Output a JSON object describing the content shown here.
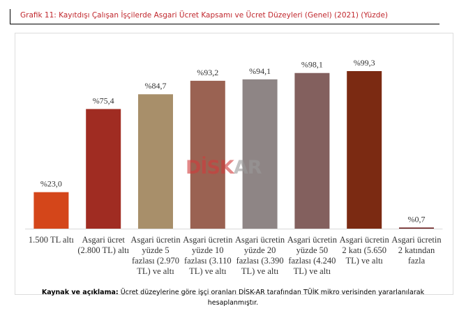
{
  "chart_data": {
    "type": "bar",
    "title": "Grafik 11: Kayıtdışı Çalışan İşçilerde Asgari Ücret Kapsamı ve Ücret Düzeyleri (Genel) (2021) (Yüzde)",
    "categories": [
      "1.500 TL altı",
      "Asgari ücret (2.800 TL) altı",
      "Asgari ücretin yüzde 5 fazlası (2.970 TL) ve altı",
      "Asgari ücretin yüzde 10 fazlası (3.110 TL) ve altı",
      "Asgari ücretin yüzde 20 fazlası (3.390 TL) ve altı",
      "Asgari ücretin yüzde 50 fazlası (4.240 TL) ve altı",
      "Asgari ücretin 2 katı (5.650 TL) ve altı",
      "Asgari ücretin 2 katından fazla"
    ],
    "category_lines": [
      [
        "1.500 TL altı"
      ],
      [
        "Asgari ücret",
        "(2.800 TL) altı"
      ],
      [
        "Asgari ücretin",
        "yüzde 5",
        "fazlası (2.970",
        "TL) ve altı"
      ],
      [
        "Asgari ücretin",
        "yüzde 10",
        "fazlası (3.110",
        "TL) ve altı"
      ],
      [
        "Asgari ücretin",
        "yüzde 20",
        "fazlası (3.390",
        "TL) ve altı"
      ],
      [
        "Asgari ücretin",
        "yüzde 50",
        "fazlası (4.240",
        "TL) ve altı"
      ],
      [
        "Asgari ücretin",
        "2 katı (5.650",
        "TL) ve altı"
      ],
      [
        "Asgari ücretin",
        "2 katından",
        "fazla"
      ]
    ],
    "values": [
      23.0,
      75.4,
      84.7,
      93.2,
      94.1,
      98.1,
      99.3,
      0.7
    ],
    "data_labels": [
      "%23,0",
      "%75,4",
      "%84,7",
      "%93,2",
      "%94,1",
      "%98,1",
      "%99,3",
      "%0,7"
    ],
    "colors": [
      "#d4461a",
      "#a02c22",
      "#a88f6a",
      "#9a6252",
      "#8e8585",
      "#83605e",
      "#7b2a12",
      "#6b1e1e"
    ],
    "xlabel": "",
    "ylabel": "",
    "ylim": [
      0,
      100
    ],
    "grid": false
  },
  "watermark": {
    "part1": "DİSK",
    "part2": "AR",
    "color1": "#d23b3b",
    "color2": "#9a9a9a"
  },
  "note": {
    "label": "Kaynak ve açıklama:",
    "text": " Ücret düzeylerine göre işçi oranları DİSK-AR tarafından TÜİK mikro verisinden yararlanılarak",
    "text2": "hesaplanmıştır."
  }
}
